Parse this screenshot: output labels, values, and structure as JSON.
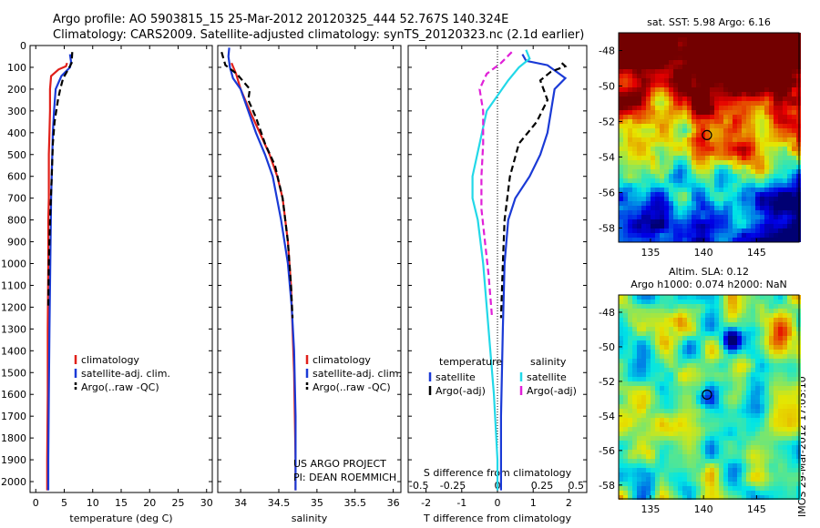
{
  "title": {
    "line1": "Argo profile: AO 5903815_15 25-Mar-2012 20120325_444 52.767S 140.324E",
    "line2": "Climatology: CARS2009. Satellite-adjusted climatology: synTS_20120323.nc (2.1d earlier)"
  },
  "depth_ticks": [
    "0",
    "100",
    "200",
    "300",
    "400",
    "500",
    "600",
    "700",
    "800",
    "900",
    "1000",
    "1100",
    "1200",
    "1300",
    "1400",
    "1500",
    "1600",
    "1700",
    "1800",
    "1900",
    "2000"
  ],
  "credit": {
    "line1": "US ARGO PROJECT",
    "line2": "PI: DEAN ROEMMICH"
  },
  "stamp": "IMOS 29-Mar-2012 17:03:10",
  "colors": {
    "climatology": "#e0201a",
    "satellite": "#1a3ad6",
    "argo": "#000000",
    "sat_s": "#22d8e8",
    "argo_s": "#e020d8"
  },
  "chart_data": [
    {
      "type": "line",
      "id": "temperature",
      "xlabel": "temperature (deg C)",
      "ylabel": "",
      "xlim": [
        -1,
        31
      ],
      "ylim": [
        2050,
        0
      ],
      "xticks": [
        0,
        5,
        10,
        15,
        20,
        25,
        30
      ],
      "legend": [
        "climatology",
        "satellite-adj. clim.",
        "Argo(..raw -QC)"
      ],
      "series": [
        {
          "name": "climatology",
          "color": "#e0201a",
          "x": [
            5.5,
            5.3,
            4.0,
            2.7,
            2.5,
            2.5,
            2.4,
            2.3,
            2.3,
            2.3,
            2.2,
            2.2,
            2.1,
            2.1,
            2.0,
            2.0
          ],
          "y": [
            80,
            95,
            110,
            140,
            200,
            300,
            400,
            500,
            600,
            700,
            800,
            1000,
            1300,
            1600,
            1900,
            2040
          ]
        },
        {
          "name": "satellite-adj. clim.",
          "color": "#1a3ad6",
          "x": [
            6.0,
            6.2,
            6.0,
            4.5,
            3.5,
            3.2,
            3.0,
            2.9,
            2.7,
            2.6,
            2.5,
            2.4,
            2.3,
            2.2,
            2.2
          ],
          "y": [
            40,
            75,
            100,
            140,
            200,
            300,
            400,
            500,
            700,
            900,
            1100,
            1300,
            1600,
            1900,
            2040
          ]
        },
        {
          "name": "Argo(..raw -QC)",
          "color": "#000000",
          "dash": true,
          "x": [
            6.4,
            6.3,
            5.7,
            4.8,
            4.3,
            3.9,
            3.3,
            3.0,
            2.8,
            2.5,
            2.3,
            2.2
          ],
          "y": [
            30,
            80,
            110,
            150,
            200,
            250,
            350,
            450,
            600,
            800,
            1000,
            1200
          ]
        }
      ]
    },
    {
      "type": "line",
      "id": "salinity",
      "xlabel": "salinity",
      "ylabel": "",
      "xlim": [
        33.7,
        36.1
      ],
      "ylim": [
        2050,
        0
      ],
      "xticks": [
        34,
        34.5,
        35,
        35.5,
        36
      ],
      "legend": [
        "climatology",
        "satellite-adj. clim.",
        "Argo(..raw -QC)"
      ],
      "series": [
        {
          "name": "climatology",
          "color": "#e0201a",
          "x": [
            33.88,
            33.94,
            34.0,
            34.12,
            34.25,
            34.38,
            34.48,
            34.55,
            34.62,
            34.66,
            34.68,
            34.7,
            34.71,
            34.72,
            34.72
          ],
          "y": [
            80,
            130,
            200,
            300,
            400,
            500,
            600,
            700,
            900,
            1100,
            1300,
            1500,
            1700,
            1900,
            2040
          ]
        },
        {
          "name": "satellite-adj. clim.",
          "color": "#1a3ad6",
          "x": [
            33.85,
            33.84,
            33.86,
            33.9,
            34.0,
            34.1,
            34.2,
            34.32,
            34.42,
            34.53,
            34.62,
            34.67,
            34.7,
            34.72,
            34.72
          ],
          "y": [
            10,
            50,
            100,
            150,
            200,
            300,
            400,
            500,
            600,
            800,
            1000,
            1200,
            1400,
            1700,
            2040
          ]
        },
        {
          "name": "Argo(..raw -QC)",
          "color": "#000000",
          "dash": true,
          "x": [
            33.75,
            33.8,
            33.95,
            34.12,
            34.1,
            34.2,
            34.32,
            34.45,
            34.55,
            34.62,
            34.66,
            34.68
          ],
          "y": [
            30,
            90,
            130,
            200,
            250,
            330,
            450,
            550,
            700,
            900,
            1100,
            1250
          ]
        }
      ]
    },
    {
      "type": "line",
      "id": "difference",
      "xlabel": "T difference from climatology",
      "x2label": "S difference from climatology",
      "ylabel": "",
      "xlim": [
        -2.5,
        2.5
      ],
      "ylim": [
        2050,
        0
      ],
      "xticks": [
        -2,
        -1,
        0,
        1,
        2
      ],
      "xticks_top": [
        "-0.5",
        "-0.25",
        "0",
        "0.25",
        "0.5"
      ],
      "legend_left": {
        "heading": "temperature",
        "items": [
          "satellite",
          "Argo(-adj)"
        ]
      },
      "legend_right": {
        "heading": "salinity",
        "items": [
          "satellite",
          "Argo(-adj)"
        ]
      },
      "series": [
        {
          "name": "T satellite",
          "color": "#1a3ad6",
          "x": [
            0.7,
            0.8,
            1.4,
            1.9,
            1.6,
            1.5,
            1.4,
            1.2,
            0.9,
            0.5,
            0.3,
            0.2,
            0.15,
            0.1,
            0.1
          ],
          "y": [
            40,
            70,
            90,
            150,
            200,
            300,
            400,
            500,
            600,
            700,
            800,
            1000,
            1300,
            1700,
            2040
          ]
        },
        {
          "name": "T Argo(-adj)",
          "color": "#000000",
          "dash": true,
          "x": [
            1.8,
            1.9,
            1.5,
            1.2,
            1.4,
            1.1,
            0.6,
            0.35,
            0.2,
            0.15,
            0.1
          ],
          "y": [
            80,
            95,
            120,
            160,
            250,
            350,
            450,
            600,
            800,
            1000,
            1250
          ]
        },
        {
          "name": "S satellite",
          "color": "#22d8e8",
          "x": [
            0.8,
            0.9,
            0.6,
            0.3,
            -0.3,
            -0.5,
            -0.7,
            -0.7,
            -0.55,
            -0.4,
            -0.25,
            -0.1,
            0,
            0
          ],
          "y": [
            20,
            60,
            100,
            160,
            300,
            450,
            600,
            700,
            800,
            1000,
            1300,
            1600,
            1900,
            2040
          ]
        },
        {
          "name": "S Argo(-adj)",
          "color": "#e020d8",
          "dash": true,
          "x": [
            0.4,
            0.1,
            -0.3,
            -0.5,
            -0.4,
            -0.4,
            -0.45,
            -0.45,
            -0.35,
            -0.25,
            -0.15
          ],
          "y": [
            30,
            80,
            130,
            200,
            300,
            450,
            600,
            750,
            900,
            1050,
            1250
          ]
        }
      ]
    },
    {
      "type": "heatmap",
      "id": "sst_map",
      "title": "sat. SST: 5.98 Argo: 6.16",
      "xticks": [
        135,
        140,
        145
      ],
      "yticks": [
        -48,
        -50,
        -52,
        -54,
        -56,
        -58
      ],
      "xlim": [
        132,
        149
      ],
      "ylim": [
        -58.8,
        -47
      ]
    },
    {
      "type": "heatmap",
      "id": "sla_map",
      "title_line1": "Altim. SLA: 0.12",
      "title_line2": "Argo h1000: 0.074 h2000: NaN",
      "xticks": [
        135,
        140,
        145
      ],
      "yticks": [
        -48,
        -50,
        -52,
        -54,
        -56,
        -58
      ],
      "xlim": [
        132,
        149
      ],
      "ylim": [
        -58.8,
        -47
      ]
    }
  ]
}
